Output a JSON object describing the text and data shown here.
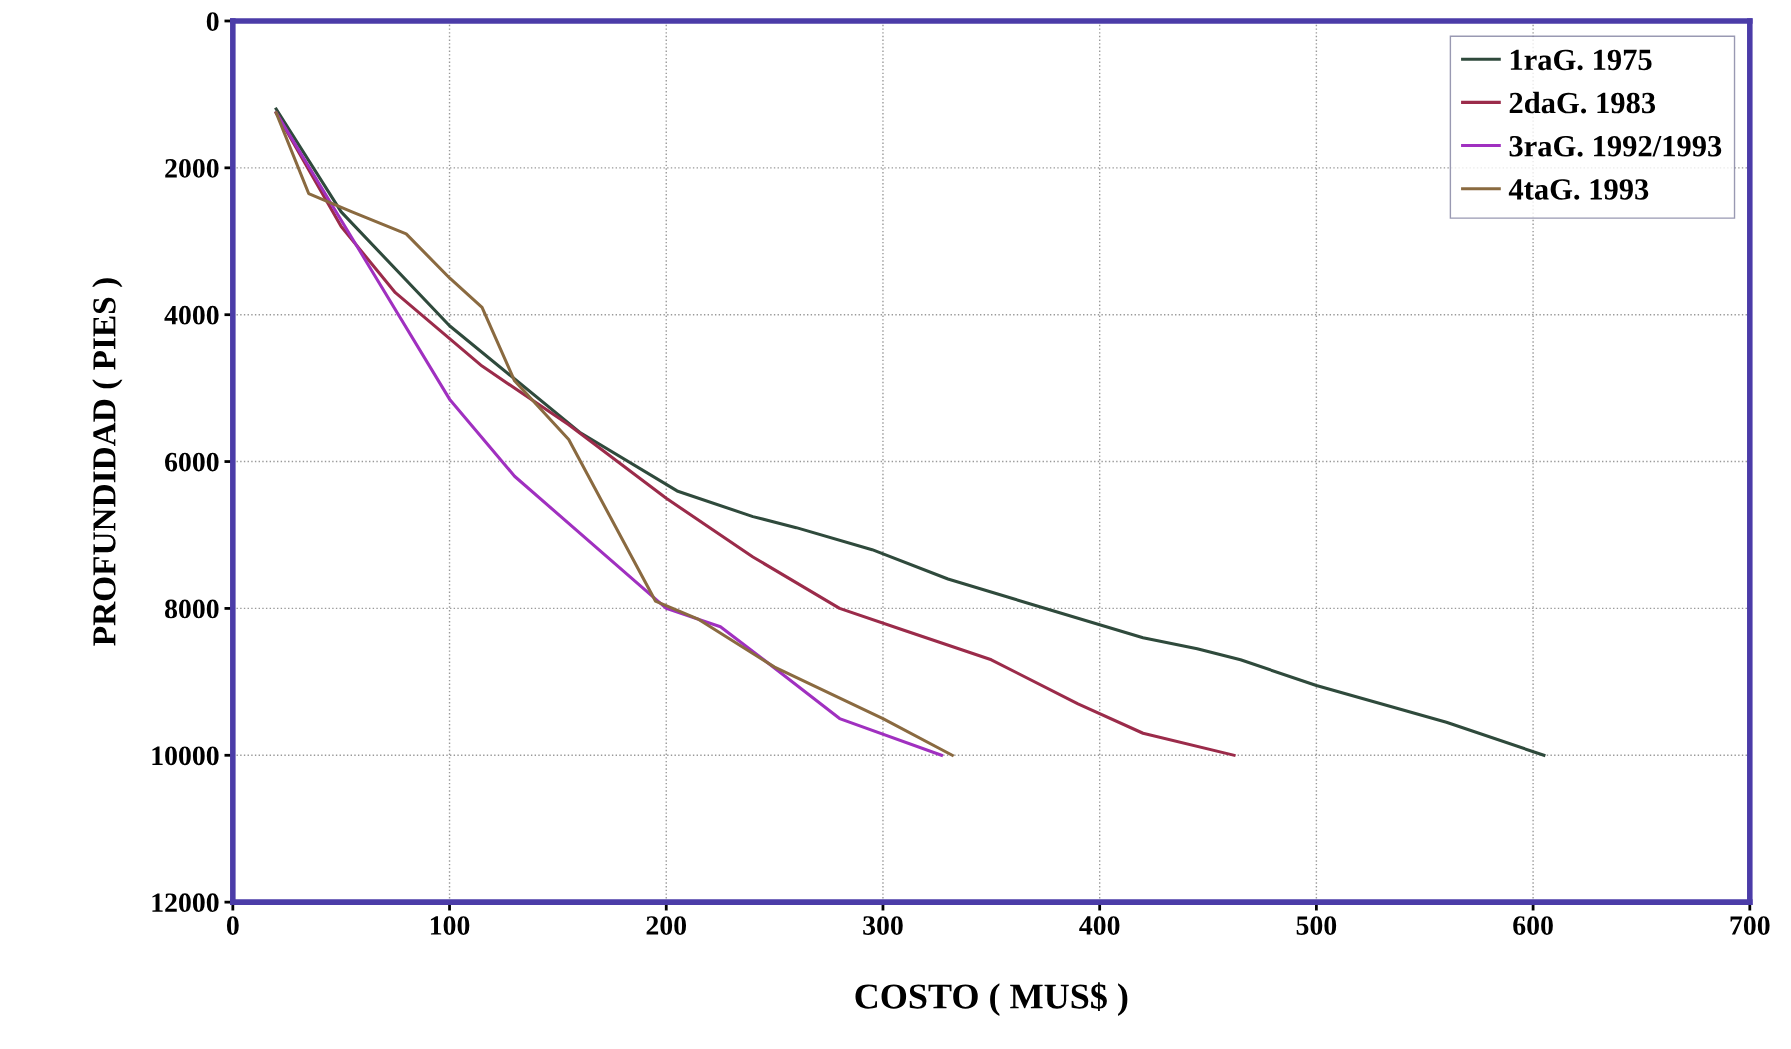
{
  "chart_data": {
    "type": "line",
    "xlabel": "COSTO ( MUS$ )",
    "ylabel": "PROFUNDIDAD ( PIES )",
    "xlim": [
      0,
      700
    ],
    "xticks": [
      0,
      100,
      200,
      300,
      400,
      500,
      600,
      700
    ],
    "ylim": [
      12000,
      0
    ],
    "yticks": [
      0,
      2000,
      4000,
      6000,
      8000,
      10000,
      12000
    ],
    "grid": true,
    "legend": "top right",
    "line_style": "solid",
    "marker": "none",
    "series": [
      {
        "name": "1raG. 1975",
        "color": "#2f4a3c",
        "x": [
          20,
          50,
          100,
          160,
          205,
          240,
          260,
          295,
          330,
          375,
          420,
          445,
          465,
          500,
          560,
          605
        ],
        "values": [
          1200,
          2600,
          4150,
          5600,
          6400,
          6750,
          6900,
          7200,
          7600,
          8000,
          8400,
          8550,
          8700,
          9050,
          9550,
          10000
        ]
      },
      {
        "name": "2daG. 1983",
        "color": "#9b2b4a",
        "x": [
          20,
          50,
          75,
          115,
          155,
          200,
          240,
          280,
          310,
          350,
          390,
          420,
          462
        ],
        "values": [
          1250,
          2800,
          3700,
          4700,
          5500,
          6500,
          7300,
          8000,
          8300,
          8700,
          9300,
          9700,
          10000
        ]
      },
      {
        "name": "3raG. 1992/1993",
        "color": "#a030c0",
        "x": [
          20,
          60,
          100,
          130,
          200,
          225,
          245,
          280,
          327
        ],
        "values": [
          1250,
          3200,
          5150,
          6200,
          8000,
          8250,
          8700,
          9500,
          10000
        ]
      },
      {
        "name": "4taG. 1993",
        "color": "#8a6a40",
        "x": [
          20,
          35,
          55,
          80,
          100,
          115,
          130,
          155,
          195,
          215,
          250,
          300,
          332
        ],
        "values": [
          1250,
          2350,
          2600,
          2900,
          3500,
          3900,
          4900,
          5700,
          7900,
          8150,
          8800,
          9500,
          10000
        ]
      }
    ]
  }
}
